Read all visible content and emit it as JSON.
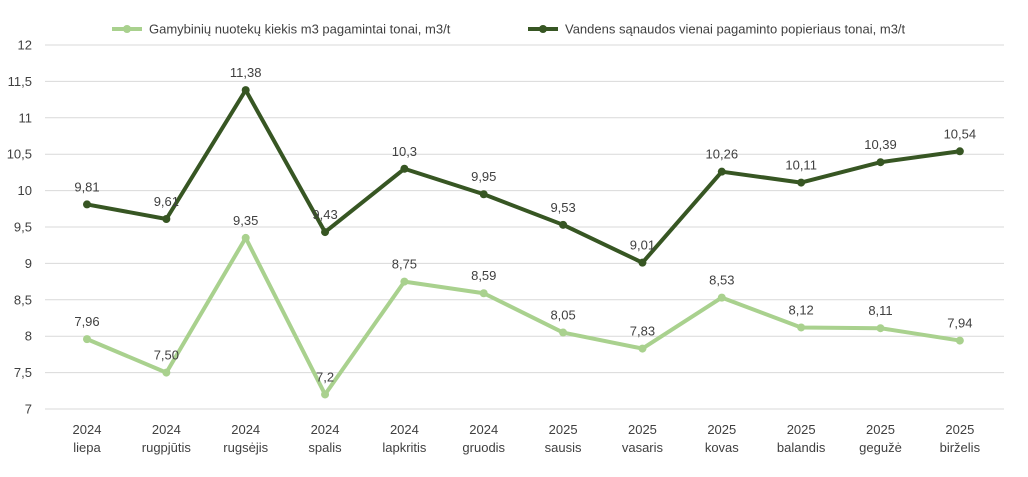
{
  "chart_data": {
    "type": "line",
    "title": "",
    "xlabel": "",
    "ylabel": "",
    "ylim": [
      7,
      12
    ],
    "yticks": [
      "7",
      "7,5",
      "8",
      "8,5",
      "9",
      "9,5",
      "10",
      "10,5",
      "11",
      "11,5",
      "12"
    ],
    "ytick_values": [
      7,
      7.5,
      8,
      8.5,
      9,
      9.5,
      10,
      10.5,
      11,
      11.5,
      12
    ],
    "grid": true,
    "legend_position": "top",
    "categories": [
      {
        "year": "2024",
        "month": "liepa"
      },
      {
        "year": "2024",
        "month": "rugpjūtis"
      },
      {
        "year": "2024",
        "month": "rugsėjis"
      },
      {
        "year": "2024",
        "month": "spalis"
      },
      {
        "year": "2024",
        "month": "lapkritis"
      },
      {
        "year": "2024",
        "month": "gruodis"
      },
      {
        "year": "2025",
        "month": "sausis"
      },
      {
        "year": "2025",
        "month": "vasaris"
      },
      {
        "year": "2025",
        "month": "kovas"
      },
      {
        "year": "2025",
        "month": "balandis"
      },
      {
        "year": "2025",
        "month": "gegužė"
      },
      {
        "year": "2025",
        "month": "birželis"
      }
    ],
    "series": [
      {
        "name": "Gamybinių nuotekų kiekis m3 pagamintai tonai, m3/t",
        "color": "#a9d18e",
        "values": [
          7.96,
          7.5,
          9.35,
          7.2,
          8.75,
          8.59,
          8.05,
          7.83,
          8.53,
          8.12,
          8.11,
          7.94
        ],
        "labels": [
          "7,96",
          "7,50",
          "9,35",
          "7,2",
          "8,75",
          "8,59",
          "8,05",
          "7,83",
          "8,53",
          "8,12",
          "8,11",
          "7,94"
        ]
      },
      {
        "name": "Vandens sąnaudos vienai pagaminto popieriaus tonai, m3/t",
        "color": "#375623",
        "values": [
          9.81,
          9.61,
          11.38,
          9.43,
          10.3,
          9.95,
          9.53,
          9.01,
          10.26,
          10.11,
          10.39,
          10.54
        ],
        "labels": [
          "9,81",
          "9,61",
          "11,38",
          "9,43",
          "10,3",
          "9,95",
          "9,53",
          "9,01",
          "10,26",
          "10,11",
          "10,39",
          "10,54"
        ]
      }
    ]
  }
}
